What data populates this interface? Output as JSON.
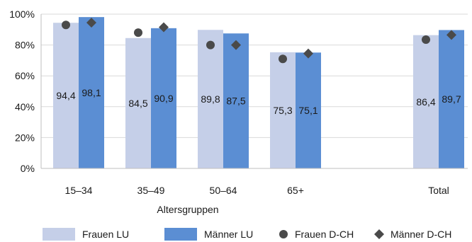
{
  "chart_data": {
    "type": "bar",
    "categories": [
      "15–34",
      "35–49",
      "50–64",
      "65+",
      "Total"
    ],
    "series": [
      {
        "name": "Frauen LU",
        "kind": "bar",
        "values": [
          94.4,
          84.5,
          89.8,
          75.3,
          86.4
        ],
        "color": "#c5cfe8"
      },
      {
        "name": "Männer LU",
        "kind": "bar",
        "values": [
          98.1,
          90.9,
          87.5,
          75.1,
          89.7
        ],
        "color": "#5b8ed3"
      },
      {
        "name": "Frauen D-CH",
        "kind": "marker",
        "marker": "circle",
        "values": [
          93,
          88,
          80,
          71,
          83.5
        ],
        "color": "#4a4a4a"
      },
      {
        "name": "Männer D-CH",
        "kind": "marker",
        "marker": "diamond",
        "values": [
          94.5,
          91.5,
          80,
          74.5,
          86.5
        ],
        "color": "#4a4a4a"
      }
    ],
    "data_labels": {
      "Frauen LU": [
        "94,4",
        "84,5",
        "89,8",
        "75,3",
        "86,4"
      ],
      "Männer LU": [
        "98,1",
        "90,9",
        "87,5",
        "75,1",
        "89,7"
      ]
    },
    "y_ticks": [
      "0%",
      "20%",
      "40%",
      "60%",
      "80%",
      "100%"
    ],
    "y_tick_values": [
      0,
      20,
      40,
      60,
      80,
      100
    ],
    "ylim": [
      0,
      100
    ],
    "xlabel": "Altersgruppen",
    "ylabel": "",
    "title": "",
    "grid": true,
    "legend_position": "bottom"
  }
}
